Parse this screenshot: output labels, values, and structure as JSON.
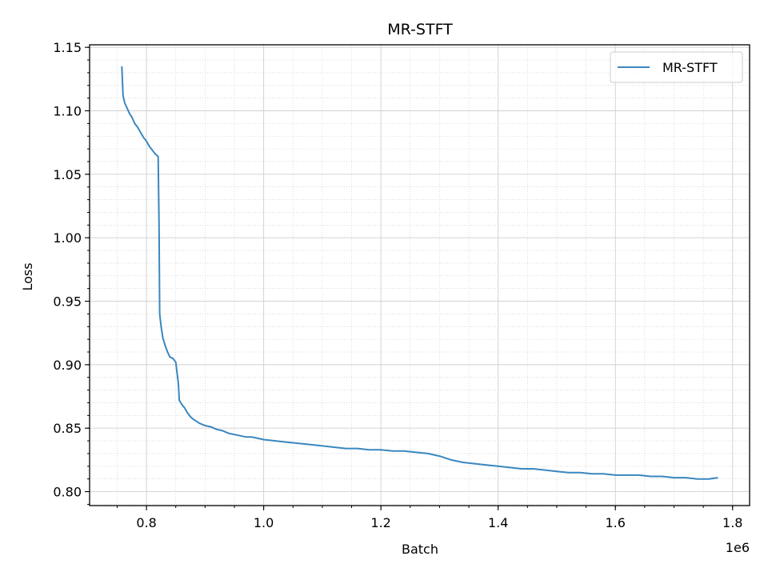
{
  "chart_data": {
    "type": "line",
    "title": "MR-STFT",
    "xlabel": "Batch",
    "ylabel": "Loss",
    "x_offset_label": "1e6",
    "xlim": [
      0.703,
      1.829
    ],
    "ylim": [
      0.789,
      1.152
    ],
    "x_ticks": [
      0.8,
      1.0,
      1.2,
      1.4,
      1.6,
      1.8
    ],
    "x_tick_labels": [
      "0.8",
      "1.0",
      "1.2",
      "1.4",
      "1.6",
      "1.8"
    ],
    "y_ticks": [
      0.8,
      0.85,
      0.9,
      0.95,
      1.0,
      1.05,
      1.1,
      1.15
    ],
    "y_tick_labels": [
      "0.80",
      "0.85",
      "0.90",
      "0.95",
      "1.00",
      "1.05",
      "1.10",
      "1.15"
    ],
    "grid": true,
    "minor_grid": true,
    "legend_position": "top-right",
    "series": [
      {
        "name": "MR-STFT",
        "color": "#3a87bf",
        "x": [
          0.758,
          0.76,
          0.763,
          0.767,
          0.771,
          0.775,
          0.78,
          0.785,
          0.79,
          0.795,
          0.8,
          0.805,
          0.81,
          0.815,
          0.82,
          0.8215,
          0.8225,
          0.825,
          0.828,
          0.832,
          0.836,
          0.84,
          0.845,
          0.85,
          0.8545,
          0.856,
          0.86,
          0.865,
          0.87,
          0.875,
          0.88,
          0.89,
          0.9,
          0.91,
          0.92,
          0.93,
          0.94,
          0.95,
          0.96,
          0.97,
          0.98,
          0.99,
          1.0,
          1.02,
          1.04,
          1.06,
          1.08,
          1.1,
          1.12,
          1.14,
          1.16,
          1.18,
          1.2,
          1.22,
          1.24,
          1.26,
          1.28,
          1.3,
          1.32,
          1.34,
          1.36,
          1.38,
          1.4,
          1.42,
          1.44,
          1.46,
          1.48,
          1.5,
          1.52,
          1.54,
          1.56,
          1.58,
          1.6,
          1.62,
          1.64,
          1.66,
          1.68,
          1.7,
          1.72,
          1.74,
          1.76,
          1.775
        ],
        "y": [
          1.135,
          1.112,
          1.106,
          1.102,
          1.098,
          1.095,
          1.09,
          1.087,
          1.083,
          1.079,
          1.076,
          1.072,
          1.069,
          1.066,
          1.064,
          1.01,
          0.94,
          0.93,
          0.921,
          0.915,
          0.91,
          0.906,
          0.905,
          0.902,
          0.885,
          0.872,
          0.869,
          0.866,
          0.862,
          0.859,
          0.857,
          0.854,
          0.852,
          0.851,
          0.849,
          0.848,
          0.846,
          0.845,
          0.844,
          0.843,
          0.843,
          0.842,
          0.841,
          0.84,
          0.839,
          0.838,
          0.837,
          0.836,
          0.835,
          0.834,
          0.834,
          0.833,
          0.833,
          0.832,
          0.832,
          0.831,
          0.83,
          0.828,
          0.825,
          0.823,
          0.822,
          0.821,
          0.82,
          0.819,
          0.818,
          0.818,
          0.817,
          0.816,
          0.815,
          0.815,
          0.814,
          0.814,
          0.813,
          0.813,
          0.813,
          0.812,
          0.812,
          0.811,
          0.811,
          0.81,
          0.81,
          0.811
        ]
      }
    ]
  }
}
